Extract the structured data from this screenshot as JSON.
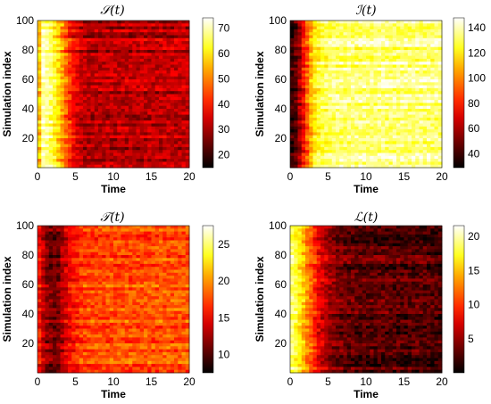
{
  "chart_data": [
    {
      "type": "heatmap",
      "title": "𝒮(t)",
      "xlabel": "Time",
      "ylabel": "Simulation index",
      "xlim": [
        0,
        20
      ],
      "ylim": [
        0,
        100
      ],
      "x_ticks": [
        "0",
        "5",
        "10",
        "15",
        "20"
      ],
      "y_ticks": [
        "20",
        "40",
        "60",
        "80",
        "100"
      ],
      "colorbar_ticks": [
        "20",
        "30",
        "40",
        "50",
        "60",
        "70"
      ],
      "clim": [
        17,
        76
      ],
      "colormap": "hot",
      "trend": [
        [
          0,
          45
        ],
        [
          0.6,
          72
        ],
        [
          2,
          65
        ],
        [
          3,
          55
        ],
        [
          4.5,
          40
        ],
        [
          6,
          32
        ],
        [
          20,
          33
        ]
      ]
    },
    {
      "type": "heatmap",
      "title": "ℐ(t)",
      "xlabel": "Time",
      "ylabel": "Simulation index",
      "xlim": [
        0,
        20
      ],
      "ylim": [
        0,
        100
      ],
      "x_ticks": [
        "0",
        "5",
        "10",
        "15",
        "20"
      ],
      "y_ticks": [
        "20",
        "40",
        "60",
        "80",
        "100"
      ],
      "colorbar_ticks": [
        "40",
        "60",
        "80",
        "100",
        "120",
        "140"
      ],
      "clim": [
        27,
        146
      ],
      "colormap": "hot",
      "trend": [
        [
          0,
          32
        ],
        [
          1,
          48
        ],
        [
          2,
          80
        ],
        [
          3,
          110
        ],
        [
          4,
          124
        ],
        [
          6,
          130
        ],
        [
          20,
          131
        ]
      ]
    },
    {
      "type": "heatmap",
      "title": "𝒯(t)",
      "xlabel": "Time",
      "ylabel": "Simulation index",
      "xlim": [
        0,
        20
      ],
      "ylim": [
        0,
        100
      ],
      "x_ticks": [
        "0",
        "5",
        "10",
        "15",
        "20"
      ],
      "y_ticks": [
        "20",
        "40",
        "60",
        "80",
        "100"
      ],
      "colorbar_ticks": [
        "10",
        "15",
        "20",
        "25"
      ],
      "clim": [
        7.5,
        27.5
      ],
      "colormap": "hot",
      "trend": [
        [
          0,
          16
        ],
        [
          1.2,
          11.5
        ],
        [
          2.5,
          10.5
        ],
        [
          4,
          14.5
        ],
        [
          6,
          17
        ],
        [
          20,
          17.5
        ]
      ]
    },
    {
      "type": "heatmap",
      "title": "ℒ(t)",
      "xlabel": "Time",
      "ylabel": "Simulation index",
      "xlim": [
        0,
        20
      ],
      "ylim": [
        0,
        100
      ],
      "x_ticks": [
        "0",
        "5",
        "10",
        "15",
        "20"
      ],
      "y_ticks": [
        "20",
        "40",
        "60",
        "80",
        "100"
      ],
      "colorbar_ticks": [
        "5",
        "10",
        "15",
        "20"
      ],
      "clim": [
        0,
        21.5
      ],
      "colormap": "hot",
      "trend": [
        [
          0,
          19.5
        ],
        [
          1,
          17
        ],
        [
          2.5,
          12
        ],
        [
          4,
          7
        ],
        [
          6,
          4
        ],
        [
          8,
          3
        ],
        [
          20,
          2.5
        ]
      ]
    }
  ]
}
